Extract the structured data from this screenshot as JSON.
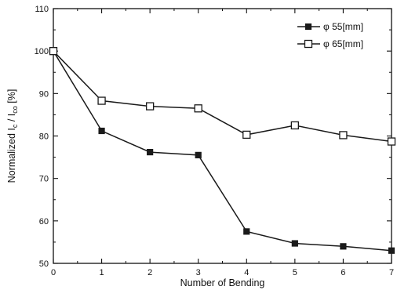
{
  "chart_data": {
    "type": "line",
    "title": "",
    "xlabel": "Number of Bending",
    "ylabel": {
      "main": "Normalized I",
      "sub1": "c",
      "mid": " / I",
      "sub2": "co",
      "unit": " [%]"
    },
    "xlim": [
      0,
      7
    ],
    "ylim": [
      50,
      110
    ],
    "xticks": [
      0,
      1,
      2,
      3,
      4,
      5,
      6,
      7
    ],
    "yticks": [
      50,
      60,
      70,
      80,
      90,
      100,
      110
    ],
    "x": [
      0,
      1,
      2,
      3,
      4,
      5,
      6,
      7
    ],
    "series": [
      {
        "name": "φ 55[mm]",
        "marker": "filled-square",
        "values": [
          100,
          81.2,
          76.2,
          75.5,
          57.5,
          54.7,
          54.0,
          53.0
        ]
      },
      {
        "name": "φ 65[mm]",
        "marker": "open-square",
        "values": [
          100,
          88.3,
          87.0,
          86.5,
          80.3,
          82.5,
          80.2,
          78.7
        ]
      }
    ],
    "legend_position": "top-right",
    "grid": false,
    "colors": {
      "line": "#1a1a1a",
      "marker_fill_open": "#ffffff"
    }
  }
}
